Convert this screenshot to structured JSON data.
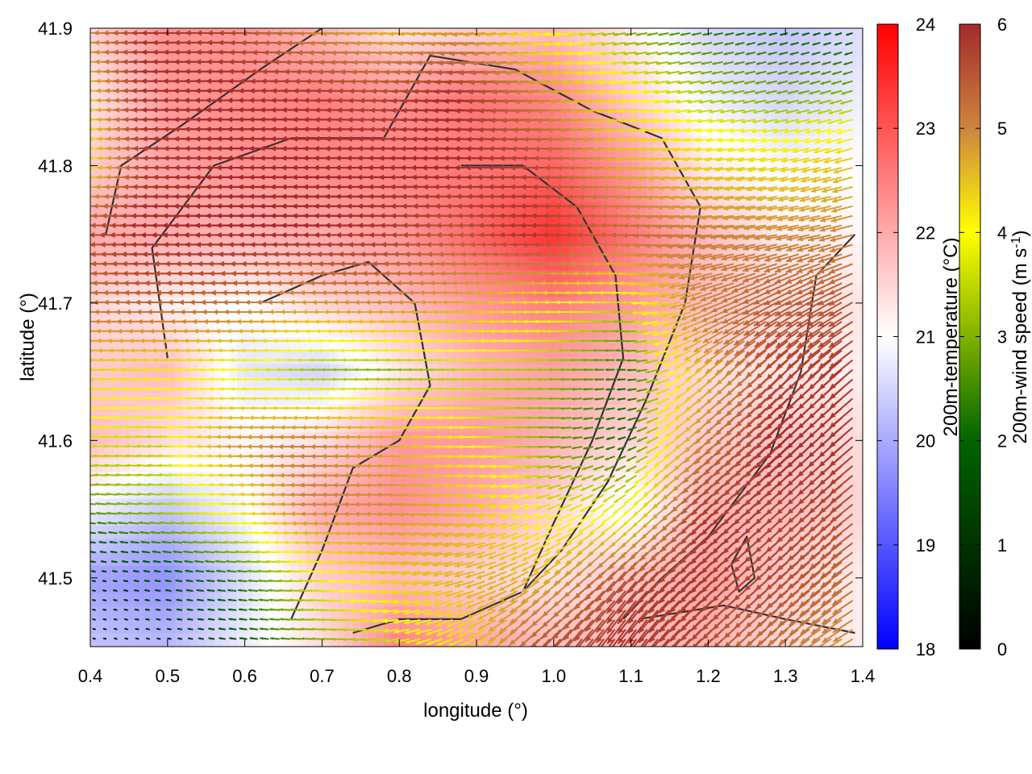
{
  "chart_data": {
    "type": "heatmap",
    "xlabel": "longitude (°)",
    "ylabel": "latitude (°)",
    "xlim": [
      0.4,
      1.4
    ],
    "ylim": [
      41.45,
      41.9
    ],
    "xticks": [
      "0.4",
      "0.5",
      "0.6",
      "0.7",
      "0.8",
      "0.9",
      "1.0",
      "1.1",
      "1.2",
      "1.3",
      "1.4"
    ],
    "yticks": [
      "41.5",
      "41.6",
      "41.7",
      "41.8",
      "41.9"
    ],
    "overlays": [
      "wind vectors",
      "contour lines"
    ],
    "temperature_colorbar": {
      "label": "200m-temperature (°C)",
      "range": [
        18,
        24
      ],
      "ticks": [
        "18",
        "19",
        "20",
        "21",
        "22",
        "23",
        "24"
      ],
      "colors": [
        "#0000ff",
        "#ffffff",
        "#ff0000"
      ]
    },
    "wind_colorbar": {
      "label_main": "200m-wind speed (m s",
      "label_sup": "-1",
      "label_end": ")",
      "range": [
        0,
        6
      ],
      "ticks": [
        "0",
        "1",
        "2",
        "3",
        "4",
        "5",
        "6"
      ],
      "colors": [
        "#000000",
        "#006400",
        "#ffff00",
        "#cd853f",
        "#a52a2a"
      ]
    },
    "temperature_field": {
      "lons": [
        0.4,
        0.5,
        0.6,
        0.7,
        0.8,
        0.9,
        1.0,
        1.1,
        1.2,
        1.3,
        1.4
      ],
      "lats": [
        41.9,
        41.85,
        41.8,
        41.75,
        41.7,
        41.65,
        41.6,
        41.55,
        41.5,
        41.45
      ],
      "values": [
        [
          21.5,
          22.3,
          22.2,
          21.8,
          21.3,
          21.5,
          21.8,
          21.2,
          20.5,
          20.3,
          20.6
        ],
        [
          21.3,
          22.2,
          22.4,
          22.5,
          22.3,
          22.6,
          22.4,
          21.6,
          20.8,
          20.5,
          20.8
        ],
        [
          21.6,
          22.1,
          22.3,
          22.4,
          22.5,
          22.6,
          22.8,
          22.2,
          21.2,
          20.9,
          21.0
        ],
        [
          22.0,
          22.0,
          21.9,
          22.0,
          22.2,
          22.8,
          23.4,
          22.6,
          21.8,
          21.2,
          21.1
        ],
        [
          21.5,
          21.2,
          21.0,
          21.5,
          21.8,
          22.2,
          22.5,
          22.2,
          21.7,
          21.4,
          21.3
        ],
        [
          21.6,
          21.8,
          20.7,
          20.5,
          21.3,
          21.9,
          22.1,
          21.8,
          21.4,
          21.3,
          21.2
        ],
        [
          21.8,
          21.4,
          21.1,
          21.4,
          22.2,
          22.2,
          21.9,
          21.5,
          21.6,
          21.7,
          21.4
        ],
        [
          20.8,
          20.3,
          20.9,
          22.0,
          22.3,
          22.0,
          21.5,
          20.8,
          21.9,
          21.8,
          21.5
        ],
        [
          19.9,
          19.7,
          20.6,
          21.6,
          21.8,
          21.5,
          21.3,
          21.7,
          22.1,
          21.6,
          21.2
        ],
        [
          20.3,
          20.2,
          20.8,
          21.4,
          22.5,
          22.1,
          21.8,
          21.8,
          21.9,
          21.4,
          21.2
        ]
      ]
    },
    "wind_field": {
      "lons": [
        0.4,
        0.5,
        0.6,
        0.7,
        0.8,
        0.9,
        1.0,
        1.1,
        1.2,
        1.3,
        1.4
      ],
      "lats": [
        41.9,
        41.85,
        41.8,
        41.75,
        41.7,
        41.65,
        41.6,
        41.55,
        41.5,
        41.45
      ],
      "speed": [
        [
          4.0,
          5.8,
          5.6,
          4.5,
          3.8,
          4.2,
          3.0,
          2.2,
          1.8,
          1.5,
          1.2
        ],
        [
          3.2,
          5.9,
          6.0,
          5.9,
          5.5,
          6.0,
          4.5,
          3.2,
          2.5,
          2.2,
          2.4
        ],
        [
          2.8,
          5.6,
          6.0,
          6.0,
          6.0,
          6.0,
          5.6,
          4.0,
          3.6,
          3.5,
          3.8
        ],
        [
          5.2,
          6.0,
          6.0,
          6.0,
          5.8,
          5.2,
          5.9,
          5.0,
          4.6,
          4.4,
          4.5
        ],
        [
          4.6,
          5.0,
          4.8,
          4.2,
          4.4,
          4.0,
          3.2,
          2.6,
          4.4,
          5.2,
          5.3
        ],
        [
          3.6,
          3.3,
          3.0,
          2.3,
          2.2,
          2.6,
          2.4,
          1.6,
          3.8,
          5.6,
          5.8
        ],
        [
          2.8,
          2.6,
          4.2,
          4.6,
          4.1,
          3.0,
          2.2,
          1.5,
          4.6,
          6.0,
          5.8
        ],
        [
          2.0,
          2.5,
          3.2,
          4.5,
          4.4,
          3.8,
          2.8,
          3.0,
          5.8,
          5.6,
          5.3
        ],
        [
          0.7,
          1.2,
          1.8,
          2.8,
          3.6,
          3.9,
          4.0,
          5.6,
          5.8,
          5.4,
          4.8
        ],
        [
          0.6,
          0.7,
          1.4,
          2.2,
          2.6,
          3.3,
          5.6,
          5.9,
          5.4,
          4.6,
          4.2
        ]
      ],
      "direction_deg": [
        [
          180,
          180,
          180,
          182,
          183,
          185,
          188,
          190,
          192,
          195,
          198
        ],
        [
          180,
          180,
          180,
          180,
          181,
          182,
          184,
          186,
          190,
          193,
          196
        ],
        [
          180,
          180,
          180,
          180,
          180,
          180,
          180,
          183,
          186,
          190,
          195
        ],
        [
          180,
          180,
          180,
          180,
          180,
          180,
          180,
          180,
          185,
          190,
          195
        ],
        [
          180,
          180,
          180,
          180,
          180,
          180,
          180,
          180,
          200,
          210,
          210
        ],
        [
          180,
          180,
          180,
          180,
          180,
          180,
          180,
          180,
          220,
          225,
          220
        ],
        [
          178,
          178,
          180,
          180,
          180,
          180,
          180,
          200,
          225,
          225,
          220
        ],
        [
          175,
          175,
          178,
          180,
          180,
          185,
          200,
          220,
          225,
          222,
          218
        ],
        [
          170,
          172,
          175,
          178,
          185,
          195,
          215,
          230,
          225,
          220,
          215
        ],
        [
          165,
          170,
          172,
          178,
          190,
          210,
          230,
          235,
          225,
          218,
          210
        ]
      ]
    },
    "contours": [
      [
        [
          0.42,
          41.75
        ],
        [
          0.44,
          41.8
        ],
        [
          0.52,
          41.83
        ],
        [
          0.62,
          41.87
        ],
        [
          0.7,
          41.9
        ]
      ],
      [
        [
          0.5,
          41.66
        ],
        [
          0.48,
          41.74
        ],
        [
          0.56,
          41.8
        ],
        [
          0.66,
          41.82
        ],
        [
          0.78,
          41.82
        ],
        [
          0.84,
          41.88
        ],
        [
          0.95,
          41.87
        ],
        [
          1.05,
          41.84
        ],
        [
          1.14,
          41.82
        ],
        [
          1.19,
          41.77
        ],
        [
          1.17,
          41.7
        ],
        [
          1.12,
          41.63
        ],
        [
          1.07,
          41.57
        ],
        [
          1.01,
          41.52
        ],
        [
          0.96,
          41.49
        ],
        [
          0.88,
          41.47
        ],
        [
          0.8,
          41.47
        ],
        [
          0.74,
          41.46
        ]
      ],
      [
        [
          0.62,
          41.7
        ],
        [
          0.7,
          41.72
        ],
        [
          0.76,
          41.73
        ],
        [
          0.82,
          41.7
        ],
        [
          0.84,
          41.64
        ],
        [
          0.8,
          41.6
        ],
        [
          0.74,
          41.58
        ],
        [
          0.72,
          41.55
        ],
        [
          0.7,
          41.52
        ],
        [
          0.66,
          41.47
        ]
      ],
      [
        [
          0.88,
          41.8
        ],
        [
          0.96,
          41.8
        ],
        [
          1.03,
          41.77
        ],
        [
          1.08,
          41.72
        ],
        [
          1.09,
          41.66
        ],
        [
          1.05,
          41.6
        ],
        [
          1.0,
          41.54
        ],
        [
          0.96,
          41.49
        ]
      ],
      [
        [
          1.39,
          41.75
        ],
        [
          1.34,
          41.72
        ],
        [
          1.32,
          41.65
        ],
        [
          1.28,
          41.59
        ],
        [
          1.24,
          41.56
        ],
        [
          1.2,
          41.53
        ],
        [
          1.14,
          41.5
        ],
        [
          1.09,
          41.47
        ]
      ],
      [
        [
          1.23,
          41.51
        ],
        [
          1.25,
          41.53
        ],
        [
          1.26,
          41.5
        ],
        [
          1.24,
          41.49
        ],
        [
          1.23,
          41.51
        ]
      ],
      [
        [
          1.11,
          41.47
        ],
        [
          1.22,
          41.48
        ],
        [
          1.3,
          41.47
        ],
        [
          1.39,
          41.46
        ]
      ]
    ]
  }
}
